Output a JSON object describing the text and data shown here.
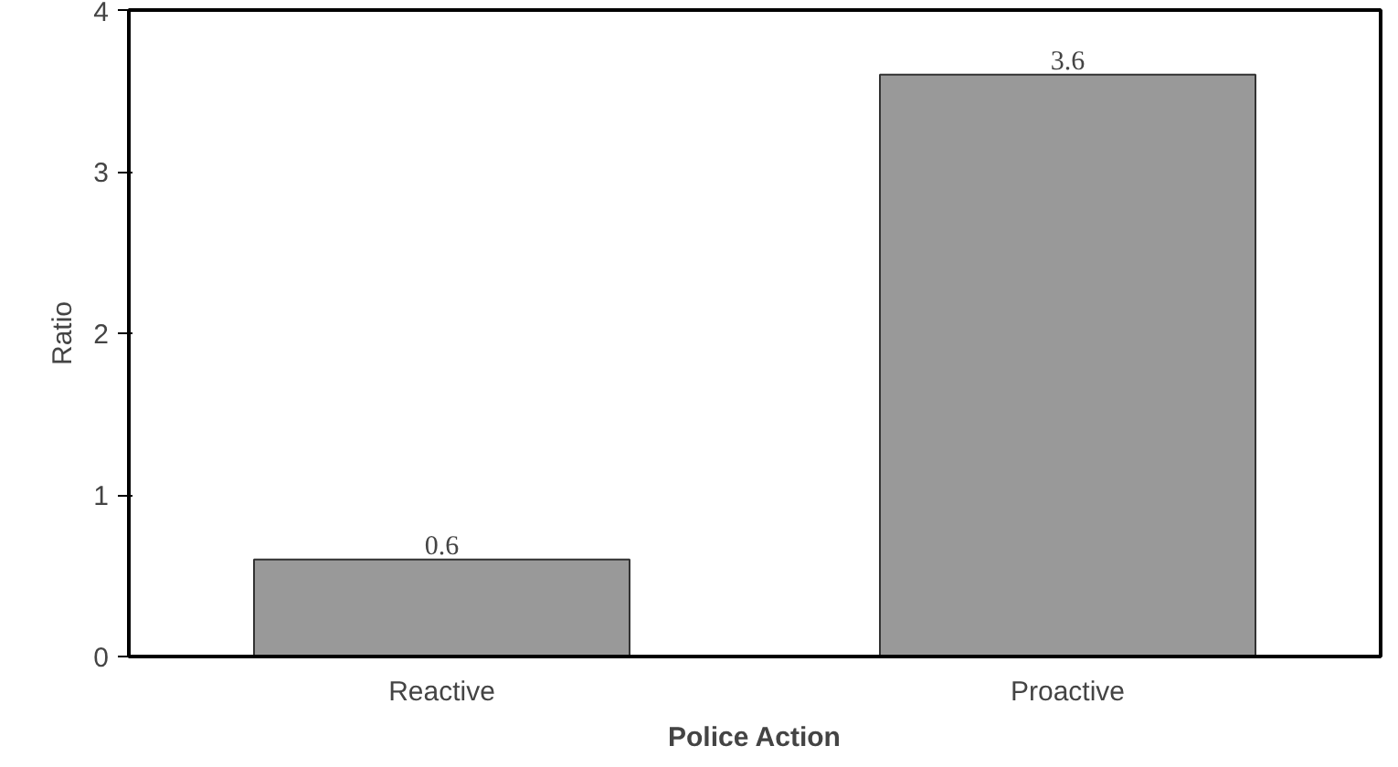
{
  "chart_data": {
    "type": "bar",
    "xlabel": "Police Action",
    "ylabel": "Ratio",
    "categories": [
      "Reactive",
      "Proactive"
    ],
    "values": [
      0.6,
      3.6
    ],
    "color": "#999999",
    "ylim": [
      0,
      4
    ],
    "yticks": [
      0,
      1,
      2,
      3,
      4
    ],
    "grid": false,
    "data_labels": true
  }
}
